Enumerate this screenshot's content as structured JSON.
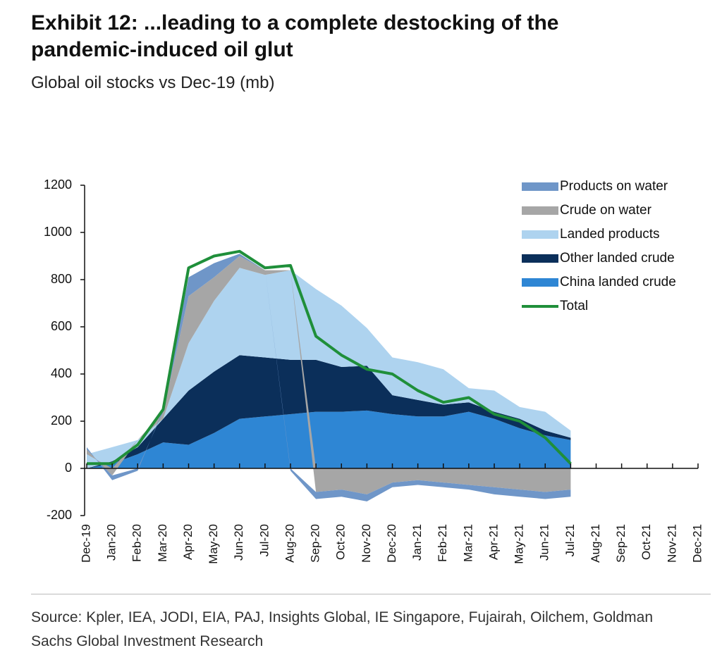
{
  "chart_data": {
    "type": "stacked-area",
    "title": "Exhibit 12: ...leading to a complete destocking of the pandemic-induced oil glut",
    "subtitle": "Global oil stocks vs Dec-19 (mb)",
    "source": "Source: Kpler, IEA, JODI, EIA, PAJ, Insights Global, IE Singapore, Fujairah, Oilchem, Goldman Sachs Global Investment Research",
    "categories": [
      "Dec-19",
      "Jan-20",
      "Feb-20",
      "Mar-20",
      "Apr-20",
      "May-20",
      "Jun-20",
      "Jul-20",
      "Aug-20",
      "Sep-20",
      "Oct-20",
      "Nov-20",
      "Dec-20",
      "Jan-21",
      "Feb-21",
      "Mar-21",
      "Apr-21",
      "May-21",
      "Jun-21",
      "Jul-21",
      "Aug-21",
      "Sep-21",
      "Oct-21",
      "Nov-21",
      "Dec-21"
    ],
    "series": [
      {
        "name": "Products on water",
        "color": "#6f96c8",
        "values": [
          10,
          -20,
          -10,
          10,
          80,
          60,
          10,
          0,
          -10,
          -30,
          -30,
          -30,
          -20,
          -20,
          -20,
          -20,
          -30,
          -30,
          -30,
          -30,
          null,
          null,
          null,
          null,
          null
        ]
      },
      {
        "name": "Crude on water",
        "color": "#a6a6a6",
        "values": [
          20,
          -30,
          0,
          30,
          200,
          100,
          50,
          20,
          0,
          -100,
          -90,
          -110,
          -60,
          -50,
          -60,
          -70,
          -80,
          -90,
          -100,
          -90,
          null,
          null,
          null,
          null,
          null
        ]
      },
      {
        "name": "Landed products",
        "color": "#aed3ef",
        "values": [
          60,
          60,
          30,
          0,
          200,
          300,
          370,
          350,
          380,
          300,
          260,
          160,
          160,
          160,
          150,
          60,
          90,
          50,
          80,
          30,
          null,
          null,
          null,
          null,
          null
        ]
      },
      {
        "name": "Other landed crude",
        "color": "#0b2f5a",
        "values": [
          0,
          10,
          30,
          100,
          230,
          260,
          270,
          250,
          230,
          220,
          190,
          190,
          80,
          70,
          50,
          40,
          30,
          40,
          20,
          10,
          null,
          null,
          null,
          null,
          null
        ]
      },
      {
        "name": "China landed crude",
        "color": "#2e86d4",
        "values": [
          0,
          20,
          60,
          110,
          100,
          150,
          210,
          220,
          230,
          240,
          240,
          245,
          230,
          220,
          220,
          240,
          210,
          170,
          140,
          120,
          null,
          null,
          null,
          null,
          null
        ]
      },
      {
        "name": "Total",
        "type": "line",
        "color": "#1f8f3a",
        "values": [
          20,
          20,
          100,
          250,
          850,
          900,
          920,
          850,
          860,
          560,
          480,
          420,
          400,
          330,
          280,
          300,
          230,
          200,
          130,
          20,
          null,
          null,
          null,
          null,
          null
        ]
      }
    ],
    "ylim": [
      -200,
      1200
    ],
    "yticks": [
      -200,
      0,
      200,
      400,
      600,
      800,
      1000,
      1200
    ],
    "legend": "upper right"
  }
}
